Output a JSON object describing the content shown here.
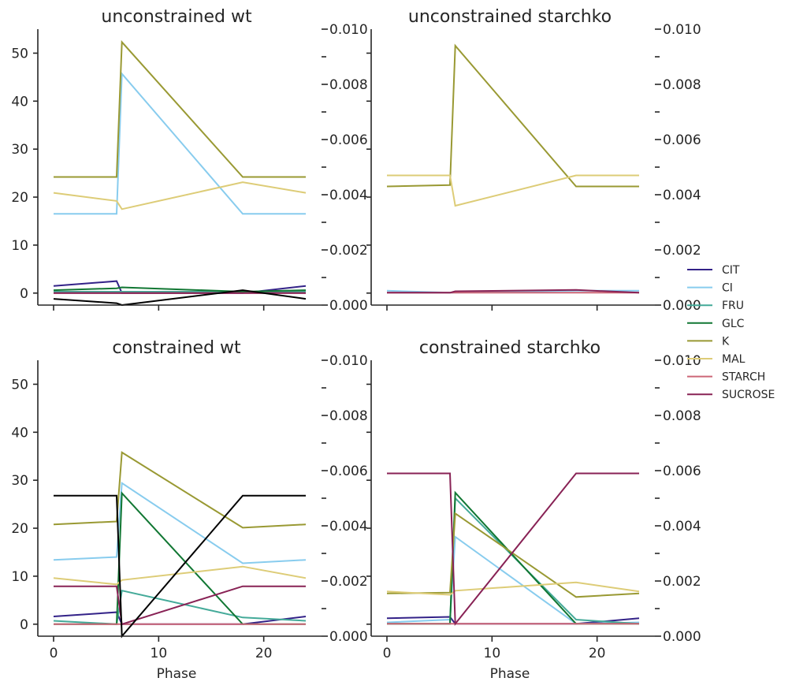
{
  "legend": {
    "placement": "right",
    "entries": [
      {
        "name": "CIT",
        "color": "#332288"
      },
      {
        "name": "CI",
        "color": "#88CCEE"
      },
      {
        "name": "FRU",
        "color": "#44AA99"
      },
      {
        "name": "GLC",
        "color": "#117733"
      },
      {
        "name": "K",
        "color": "#999933"
      },
      {
        "name": "MAL",
        "color": "#DDCC77"
      },
      {
        "name": "STARCH",
        "color": "#CC6677"
      },
      {
        "name": "SUCROSE",
        "color": "#882255"
      }
    ]
  },
  "chart_data": [
    {
      "type": "line",
      "title": "unconstrained wt",
      "xlabel": "",
      "xlim": [
        -1.5,
        25.5
      ],
      "xticks": [
        0,
        10,
        20
      ],
      "show_xticklabels": false,
      "ylim": [
        -2.5,
        55
      ],
      "yticks": [
        0,
        10,
        20,
        30,
        40,
        50
      ],
      "y2lim": [
        0,
        0.01
      ],
      "y2ticks": [
        "0.000",
        "0.002",
        "0.004",
        "0.006",
        "0.008",
        "0.010"
      ],
      "x": [
        0,
        6,
        6.5,
        18,
        24
      ],
      "series": [
        {
          "name": "CIT",
          "color": "#332288",
          "values": [
            1.5,
            2.5,
            0,
            0,
            1.5
          ]
        },
        {
          "name": "CI",
          "color": "#88CCEE",
          "values": [
            16.5,
            16.5,
            45.7,
            16.5,
            16.5
          ]
        },
        {
          "name": "FRU",
          "color": "#44AA99",
          "values": [
            0.3,
            0.3,
            0.3,
            0.3,
            0.3
          ]
        },
        {
          "name": "GLC",
          "color": "#117733",
          "values": [
            0.6,
            1.0,
            1.2,
            0.3,
            0.6
          ]
        },
        {
          "name": "K",
          "color": "#999933",
          "values": [
            24.2,
            24.2,
            52.3,
            24.2,
            24.2
          ]
        },
        {
          "name": "MAL",
          "color": "#DDCC77",
          "values": [
            20.9,
            19.2,
            17.5,
            23.1,
            20.9
          ]
        },
        {
          "name": "STARCH",
          "color": "#CC6677",
          "values": [
            0,
            0,
            0,
            0,
            0
          ]
        },
        {
          "name": "SUCROSE",
          "color": "#882255",
          "values": [
            0,
            0,
            0,
            0,
            0
          ]
        },
        {
          "color": "#000000",
          "values": [
            -1.2,
            -2.1,
            -2.5,
            0.6,
            -1.2
          ]
        }
      ]
    },
    {
      "type": "line",
      "title": "unconstrained starchko",
      "xlabel": "",
      "xlim": [
        -1.5,
        25.5
      ],
      "xticks": [
        0,
        10,
        20
      ],
      "show_xticklabels": false,
      "ylim": [
        -2.5,
        55
      ],
      "yticks": [
        0,
        10,
        20,
        30,
        40,
        50
      ],
      "y2lim": [
        0,
        0.01
      ],
      "y2ticks": [
        "0.000",
        "0.002",
        "0.004",
        "0.006",
        "0.008",
        "0.010"
      ],
      "x": [
        0,
        6,
        6.5,
        18,
        24
      ],
      "series": [
        {
          "name": "CI",
          "color": "#88CCEE",
          "values": [
            0.00052,
            0.00045,
            0.00045,
            0.00052,
            0.00052
          ]
        },
        {
          "name": "K",
          "color": "#999933",
          "values": [
            0.0043,
            0.00435,
            0.0094,
            0.0043,
            0.0043
          ]
        },
        {
          "name": "MAL",
          "color": "#DDCC77",
          "values": [
            0.0047,
            0.0047,
            0.0036,
            0.0047,
            0.0047
          ]
        },
        {
          "name": "STARCH",
          "color": "#CC6677",
          "values": [
            0.00045,
            0.00045,
            0.00045,
            0.00045,
            0.00045
          ]
        },
        {
          "name": "SUCROSE",
          "color": "#882255",
          "values": [
            0.00045,
            0.00045,
            0.0005,
            0.00055,
            0.00045
          ]
        }
      ]
    },
    {
      "type": "line",
      "title": "constrained wt",
      "xlabel": "Phase",
      "xlim": [
        -1.5,
        25.5
      ],
      "xticks": [
        0,
        10,
        20
      ],
      "show_xticklabels": true,
      "ylim": [
        -2.5,
        55
      ],
      "yticks": [
        0,
        10,
        20,
        30,
        40,
        50
      ],
      "y2lim": [
        0,
        0.01
      ],
      "y2ticks": [
        "0.000",
        "0.002",
        "0.004",
        "0.006",
        "0.008",
        "0.010"
      ],
      "x": [
        0,
        6,
        6.5,
        18,
        24
      ],
      "series": [
        {
          "name": "CIT",
          "color": "#332288",
          "values": [
            1.6,
            2.5,
            0,
            0,
            1.6
          ]
        },
        {
          "name": "CI",
          "color": "#88CCEE",
          "values": [
            13.4,
            14.0,
            29.4,
            12.7,
            13.4
          ]
        },
        {
          "name": "FRU",
          "color": "#44AA99",
          "values": [
            0.7,
            0,
            7.0,
            1.4,
            0.7
          ]
        },
        {
          "name": "GLC",
          "color": "#117733",
          "values": [
            0,
            0,
            27.3,
            0,
            0
          ]
        },
        {
          "name": "K",
          "color": "#999933",
          "values": [
            20.8,
            21.4,
            35.8,
            20.1,
            20.8
          ]
        },
        {
          "name": "MAL",
          "color": "#DDCC77",
          "values": [
            9.6,
            8.3,
            9.2,
            12.0,
            9.6
          ]
        },
        {
          "name": "STARCH",
          "color": "#CC6677",
          "values": [
            0,
            0,
            0,
            0,
            0
          ]
        },
        {
          "name": "SUCROSE",
          "color": "#882255",
          "values": [
            7.9,
            7.9,
            0,
            7.9,
            7.9
          ]
        },
        {
          "color": "#000000",
          "values": [
            26.8,
            26.8,
            -2.5,
            26.8,
            26.8
          ]
        }
      ]
    },
    {
      "type": "line",
      "title": "constrained starchko",
      "xlabel": "Phase",
      "xlim": [
        -1.5,
        25.5
      ],
      "xticks": [
        0,
        10,
        20
      ],
      "show_xticklabels": true,
      "ylim": [
        -2.5,
        55
      ],
      "yticks": [
        0,
        10,
        20,
        30,
        40,
        50
      ],
      "y2lim": [
        0,
        0.01
      ],
      "y2ticks": [
        "0.000",
        "0.002",
        "0.004",
        "0.006",
        "0.008",
        "0.010"
      ],
      "x": [
        0,
        6,
        6.5,
        18,
        24
      ],
      "series": [
        {
          "name": "CIT",
          "color": "#332288",
          "values": [
            0.00065,
            0.0007,
            0.00045,
            0.00045,
            0.00065
          ]
        },
        {
          "name": "CI",
          "color": "#88CCEE",
          "values": [
            0.0005,
            0.0006,
            0.0036,
            0.00045,
            0.0005
          ]
        },
        {
          "name": "FRU",
          "color": "#44AA99",
          "values": [
            0.00045,
            0.00045,
            0.005,
            0.0006,
            0.00045
          ]
        },
        {
          "name": "GLC",
          "color": "#117733",
          "values": [
            0.00045,
            0.00045,
            0.0052,
            0.00045,
            0.00045
          ]
        },
        {
          "name": "K",
          "color": "#999933",
          "values": [
            0.00155,
            0.00158,
            0.00445,
            0.00142,
            0.00155
          ]
        },
        {
          "name": "MAL",
          "color": "#DDCC77",
          "values": [
            0.00162,
            0.0015,
            0.00165,
            0.00195,
            0.00162
          ]
        },
        {
          "name": "STARCH",
          "color": "#CC6677",
          "values": [
            0.00045,
            0.00045,
            0.00045,
            0.00045,
            0.00045
          ]
        },
        {
          "name": "SUCROSE",
          "color": "#882255",
          "values": [
            0.0059,
            0.0059,
            0.00045,
            0.0059,
            0.0059
          ]
        }
      ]
    }
  ]
}
